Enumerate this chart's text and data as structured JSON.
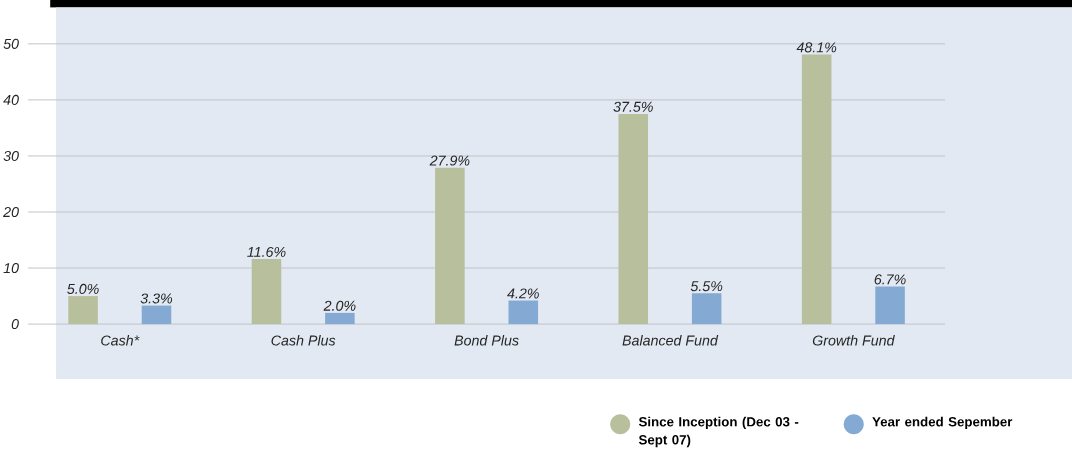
{
  "chart_data": {
    "type": "bar",
    "categories": [
      "Cash*",
      "Cash Plus",
      "Bond Plus",
      "Balanced Fund",
      "Growth Fund"
    ],
    "series": [
      {
        "name": "Since Inception (Dec 03 - Sept 07)",
        "color": "#b8bf9c",
        "values": [
          5.0,
          11.6,
          27.9,
          37.5,
          48.1
        ],
        "value_labels": [
          "5.0%",
          "11.6%",
          "27.9%",
          "37.5%",
          "48.1%"
        ]
      },
      {
        "name": "Year ended Sepember",
        "color": "#84aad3",
        "values": [
          3.3,
          2.0,
          4.2,
          5.5,
          6.7
        ],
        "value_labels": [
          "3.3%",
          "2.0%",
          "4.2%",
          "5.5%",
          "6.7%"
        ]
      }
    ],
    "ylim": [
      0,
      50
    ],
    "yticks": [
      0,
      10,
      20,
      30,
      40,
      50
    ],
    "grid": "y",
    "legend": "bottom right"
  }
}
